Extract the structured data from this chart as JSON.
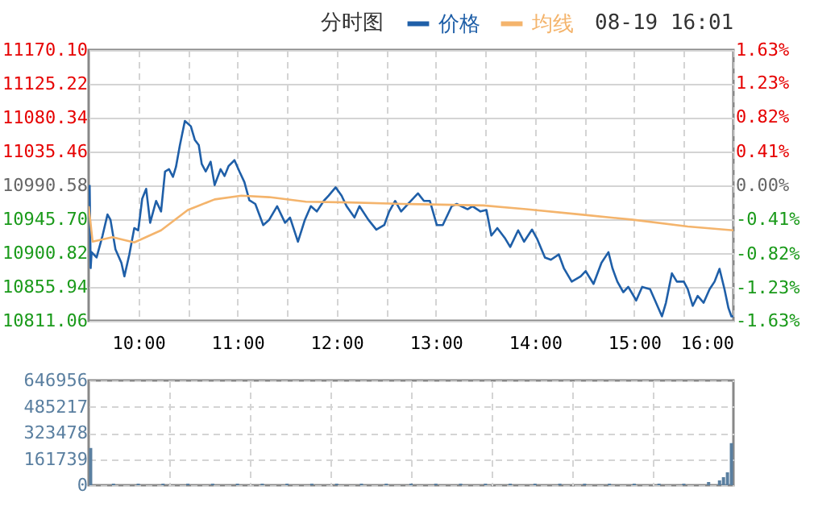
{
  "chart_data": [
    {
      "type": "line",
      "title": "分时图",
      "annotations": [
        "08-19 16:01"
      ],
      "legend": "top",
      "grid": true,
      "series": [
        {
          "name": "价格",
          "color": "#1f5fa8",
          "x": [
            9.51,
            9.52,
            9.53,
            9.58,
            9.64,
            9.69,
            9.72,
            9.77,
            9.83,
            9.86,
            9.91,
            9.96,
            10.0,
            10.04,
            10.08,
            10.12,
            10.18,
            10.23,
            10.27,
            10.31,
            10.35,
            10.38,
            10.42,
            10.47,
            10.53,
            10.57,
            10.61,
            10.64,
            10.68,
            10.73,
            10.77,
            10.83,
            10.87,
            10.91,
            10.97,
            11.02,
            11.07,
            11.12,
            11.18,
            11.26,
            11.32,
            11.4,
            11.48,
            11.53,
            11.61,
            11.68,
            11.74,
            11.8,
            11.87,
            11.92,
            11.99,
            12.05,
            12.1,
            12.18,
            12.23,
            12.32,
            12.4,
            12.48,
            12.53,
            12.59,
            12.65,
            12.72,
            12.82,
            12.88,
            12.94,
            13.01,
            13.07,
            13.16,
            13.21,
            13.32,
            13.37,
            13.45,
            13.51,
            13.56,
            13.62,
            13.7,
            13.75,
            13.83,
            13.89,
            13.97,
            14.02,
            14.1,
            14.16,
            14.24,
            14.29,
            14.37,
            14.46,
            14.51,
            14.59,
            14.67,
            14.74,
            14.78,
            14.83,
            14.89,
            14.94,
            14.99,
            15.02,
            15.08,
            15.16,
            15.21,
            15.28,
            15.32,
            15.38,
            15.43,
            15.5,
            15.54,
            15.59,
            15.64,
            15.7,
            15.76,
            15.81,
            15.86,
            15.91,
            15.95,
            15.98,
            16.0
          ],
          "values": [
            10991,
            10881,
            10902,
            10895,
            10924,
            10952,
            10945,
            10906,
            10888,
            10870,
            10899,
            10934,
            10931,
            10973,
            10986,
            10941,
            10970,
            10956,
            11009,
            11012,
            11002,
            11015,
            11044,
            11076,
            11069,
            11051,
            11044,
            11019,
            11009,
            11022,
            10991,
            11012,
            11003,
            11016,
            11024,
            11009,
            10995,
            10971,
            10966,
            10938,
            10945,
            10963,
            10941,
            10948,
            10916,
            10945,
            10963,
            10956,
            10970,
            10977,
            10988,
            10977,
            10963,
            10948,
            10963,
            10945,
            10932,
            10938,
            10956,
            10970,
            10956,
            10966,
            10980,
            10970,
            10970,
            10938,
            10938,
            10963,
            10966,
            10959,
            10963,
            10956,
            10958,
            10924,
            10934,
            10920,
            10909,
            10931,
            10916,
            10932,
            10920,
            10895,
            10892,
            10899,
            10881,
            10863,
            10870,
            10877,
            10860,
            10888,
            10902,
            10881,
            10863,
            10849,
            10856,
            10845,
            10838,
            10856,
            10853,
            10838,
            10817,
            10835,
            10874,
            10863,
            10863,
            10853,
            10831,
            10844,
            10835,
            10853,
            10863,
            10880,
            10853,
            10828,
            10817,
            10817
          ]
        },
        {
          "name": "均线",
          "color": "#f4b46c",
          "x": [
            9.5,
            9.54,
            9.74,
            9.96,
            10.23,
            10.5,
            10.77,
            11.04,
            11.32,
            11.69,
            12.13,
            12.67,
            13.48,
            13.91,
            14.46,
            14.99,
            15.54,
            16.0
          ],
          "values": [
            10963,
            10916,
            10922,
            10915,
            10931,
            10958,
            10972,
            10977,
            10975,
            10969,
            10968,
            10966,
            10964,
            10959,
            10952,
            10945,
            10936,
            10931
          ]
        }
      ],
      "xlim": [
        9.5,
        16
      ],
      "xticks": [
        {
          "value": 10,
          "label": "10:00"
        },
        {
          "value": 10.5,
          "label": null
        },
        {
          "value": 11,
          "label": "11:00"
        },
        {
          "value": 11.5,
          "label": null
        },
        {
          "value": 12,
          "label": "12:00"
        },
        {
          "value": 12.5,
          "label": null
        },
        {
          "value": 13,
          "label": "13:00"
        },
        {
          "value": 13.5,
          "label": null
        },
        {
          "value": 14,
          "label": "14:00"
        },
        {
          "value": 14.5,
          "label": null
        },
        {
          "value": 15,
          "label": "15:00"
        },
        {
          "value": 15.5,
          "label": null
        },
        {
          "value": 16,
          "label": "16:00"
        }
      ],
      "ylim": [
        10811.06,
        11170.1
      ],
      "yticks": [
        {
          "value": 10811.06,
          "label": "10811.06"
        },
        {
          "value": 10855.94,
          "label": "10855.94"
        },
        {
          "value": 10900.82,
          "label": "10900.82"
        },
        {
          "value": 10945.7,
          "label": "10945.70"
        },
        {
          "value": 10990.58,
          "label": "10990.58"
        },
        {
          "value": 11035.46,
          "label": "11035.46"
        },
        {
          "value": 11080.34,
          "label": "11080.34"
        },
        {
          "value": 11125.22,
          "label": "11125.22"
        },
        {
          "value": 11170.1,
          "label": "11170.10"
        }
      ],
      "y2lim": [
        -1.63,
        1.63
      ],
      "y2ticks": [
        {
          "value": -1.63,
          "label": "-1.63%"
        },
        {
          "value": -1.23,
          "label": "-1.23%"
        },
        {
          "value": -0.82,
          "label": "-0.82%"
        },
        {
          "value": -0.41,
          "label": "-0.41%"
        },
        {
          "value": 0,
          "label": "0.00%"
        },
        {
          "value": 0.41,
          "label": "0.41%"
        },
        {
          "value": 0.82,
          "label": "0.82%"
        },
        {
          "value": 1.23,
          "label": "1.23%"
        },
        {
          "value": 1.63,
          "label": "1.63%"
        }
      ]
    },
    {
      "type": "bar",
      "color": "#5a7fa0",
      "grid": true,
      "tick_labels": "y",
      "x": [
        9.52,
        9.75,
        10.0,
        10.25,
        10.5,
        10.75,
        11.0,
        11.25,
        11.5,
        11.75,
        12.0,
        12.25,
        12.5,
        12.75,
        13.0,
        13.25,
        13.5,
        13.75,
        14.0,
        14.25,
        14.5,
        14.75,
        15.0,
        15.25,
        15.5,
        15.75,
        15.86,
        15.9,
        15.94,
        15.98
      ],
      "values": [
        230000,
        10000,
        10000,
        10000,
        10000,
        10000,
        10000,
        10000,
        10000,
        10000,
        10000,
        10000,
        10000,
        10000,
        10000,
        10000,
        10000,
        10000,
        10000,
        10000,
        10000,
        10000,
        10000,
        10000,
        10000,
        20000,
        30000,
        50000,
        80000,
        260000
      ],
      "xlim": [
        9.5,
        16
      ],
      "xticks": [
        {
          "value": 10.3125,
          "label": null
        },
        {
          "value": 11.125,
          "label": null
        },
        {
          "value": 11.9375,
          "label": null
        },
        {
          "value": 12.75,
          "label": null
        },
        {
          "value": 13.5625,
          "label": null
        },
        {
          "value": 14.375,
          "label": null
        },
        {
          "value": 15.1875,
          "label": null
        }
      ],
      "ylim": [
        0,
        646956
      ],
      "yticks": [
        0,
        161739,
        323478,
        485217,
        646956
      ]
    }
  ]
}
